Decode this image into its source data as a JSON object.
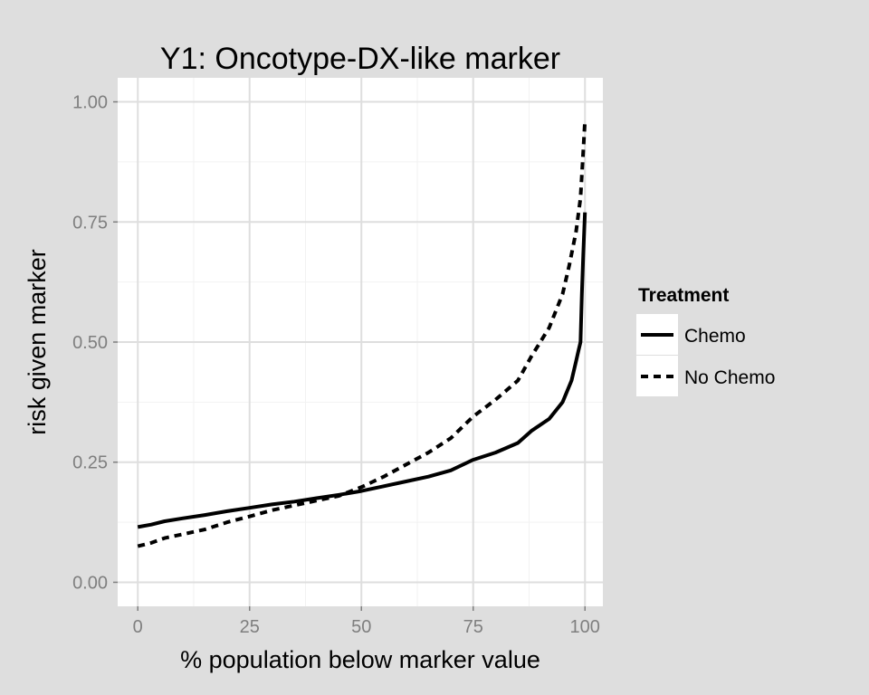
{
  "chart_data": {
    "type": "line",
    "title": "Y1: Oncotype-DX-like marker",
    "xlabel": "% population below marker value",
    "ylabel": "risk given marker",
    "xlim": [
      -4.5,
      104
    ],
    "ylim": [
      -0.05,
      1.05
    ],
    "x_ticks": [
      0,
      25,
      50,
      75,
      100
    ],
    "x_tick_labels": [
      "0",
      "25",
      "50",
      "75",
      "100"
    ],
    "y_ticks": [
      0,
      0.25,
      0.5,
      0.75,
      1.0
    ],
    "y_tick_labels": [
      "0.00",
      "0.25",
      "0.50",
      "0.75",
      "1.00"
    ],
    "grid": true,
    "legend": {
      "title": "Treatment",
      "position": "right"
    },
    "series": [
      {
        "name": "Chemo",
        "linestyle": "solid",
        "color": "#000000",
        "x": [
          0,
          3,
          6,
          10,
          15,
          20,
          25,
          30,
          35,
          40,
          45,
          50,
          55,
          60,
          65,
          70,
          75,
          80,
          85,
          88,
          92,
          95,
          97,
          98,
          98.5,
          99,
          99.3,
          99.6,
          100
        ],
        "y": [
          0.115,
          0.12,
          0.127,
          0.133,
          0.14,
          0.148,
          0.155,
          0.162,
          0.168,
          0.175,
          0.182,
          0.19,
          0.2,
          0.21,
          0.22,
          0.233,
          0.255,
          0.27,
          0.29,
          0.315,
          0.34,
          0.375,
          0.42,
          0.46,
          0.48,
          0.5,
          0.6,
          0.68,
          0.77
        ]
      },
      {
        "name": "No Chemo",
        "linestyle": "dashed",
        "color": "#000000",
        "x": [
          0,
          3,
          6,
          10,
          15,
          20,
          25,
          30,
          35,
          40,
          45,
          50,
          55,
          60,
          65,
          70,
          75,
          80,
          85,
          88,
          92,
          95,
          96.5,
          98,
          99,
          99.5,
          100
        ],
        "y": [
          0.075,
          0.082,
          0.092,
          0.1,
          0.11,
          0.125,
          0.137,
          0.15,
          0.16,
          0.17,
          0.18,
          0.198,
          0.22,
          0.245,
          0.27,
          0.3,
          0.345,
          0.38,
          0.42,
          0.47,
          0.53,
          0.6,
          0.66,
          0.73,
          0.8,
          0.88,
          0.96
        ]
      }
    ]
  }
}
